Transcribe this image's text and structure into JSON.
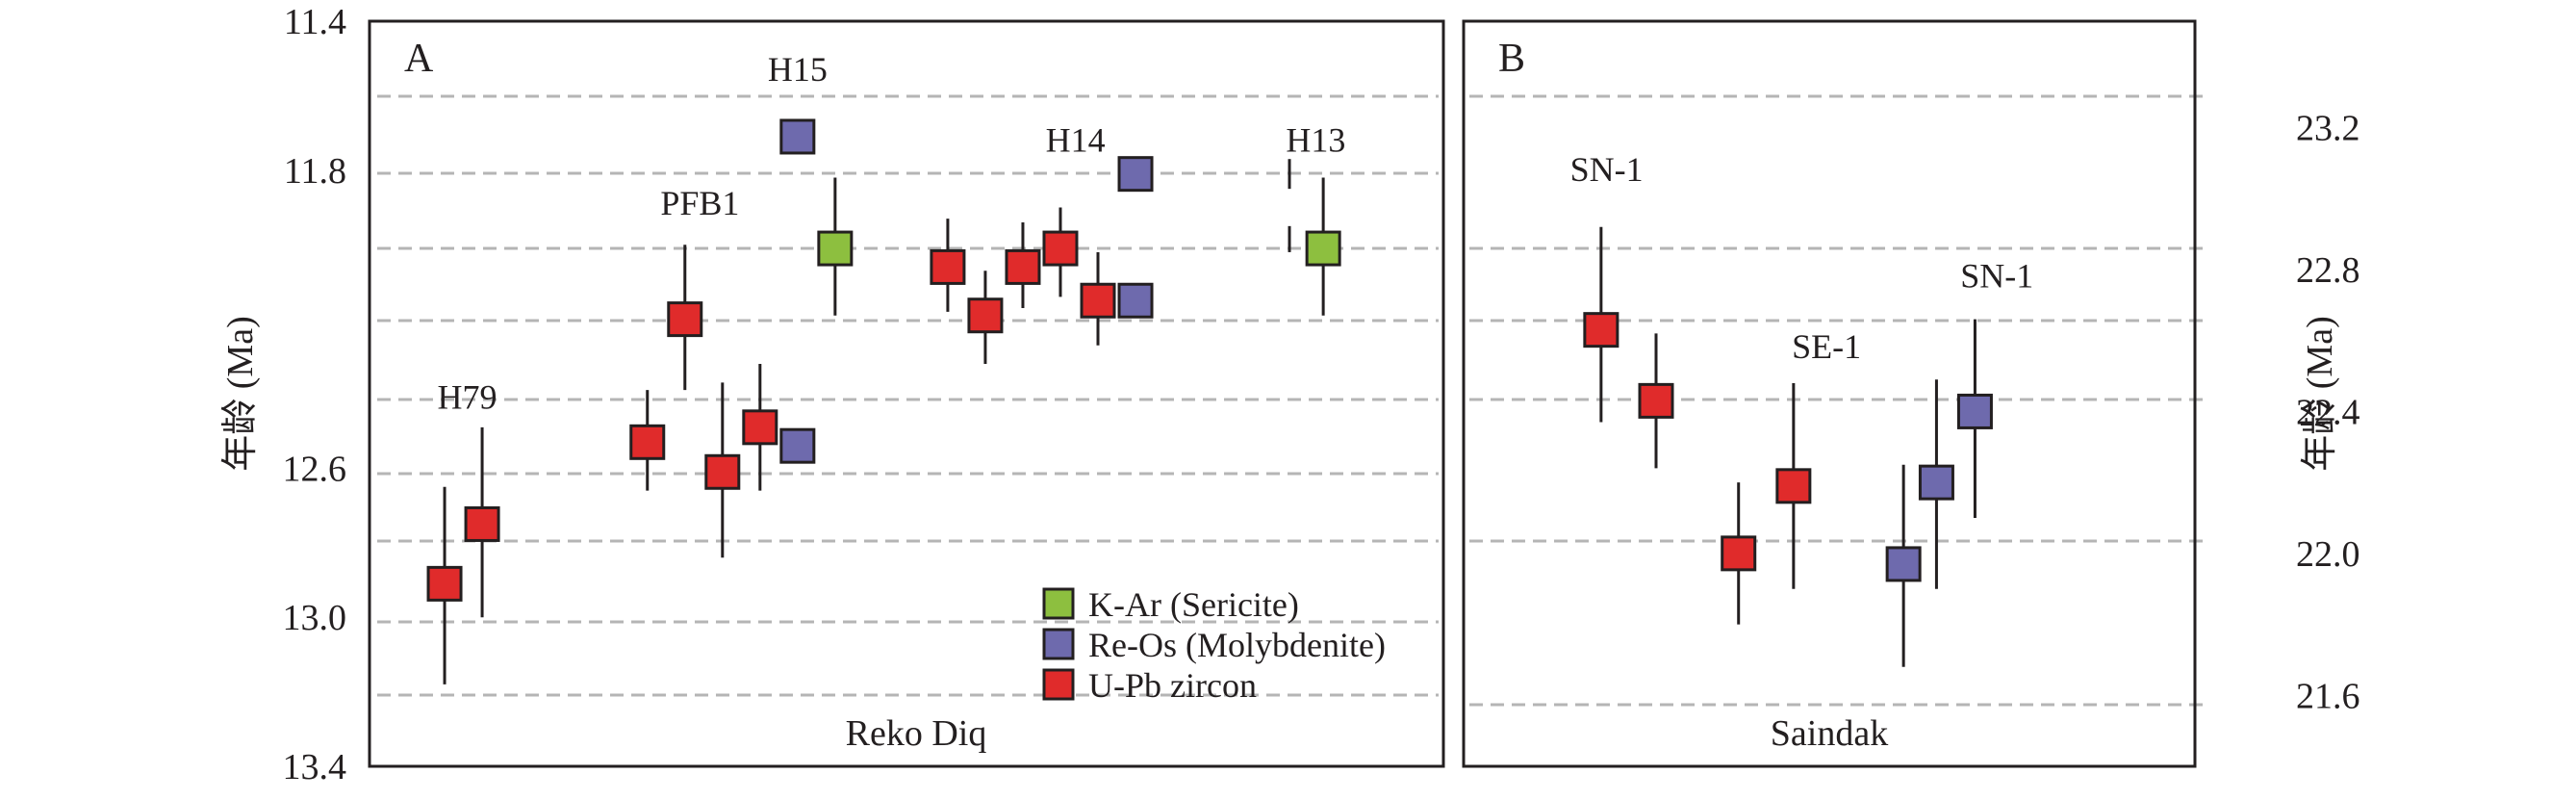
{
  "colors": {
    "K-Ar": "#8dbf3f",
    "Re-Os": "#6e6aad",
    "U-Pb": "#e02b2b",
    "frame": "#231f20",
    "grid": "#b5b5b5"
  },
  "chart_data": [
    {
      "type": "scatter",
      "panel": "A",
      "site": "Reko Diq",
      "ylabel": "年龄 (Ma)",
      "y_axis_side": "left",
      "ylim": [
        11.4,
        13.4
      ],
      "y_inverted": true,
      "yticks": [
        "11.4",
        "11.8",
        "12.6",
        "13.0",
        "13.4"
      ],
      "grid": true,
      "legend_position": "bottom-right",
      "legend": [
        {
          "key": "K-Ar",
          "label": "K-Ar (Sericite)"
        },
        {
          "key": "Re-Os",
          "label": "Re-Os (Molybdenite)"
        },
        {
          "key": "U-Pb",
          "label": "U-Pb zircon"
        }
      ],
      "groups": [
        {
          "label": "H79",
          "x": 1.3,
          "y": 12.44
        },
        {
          "label": "PFB1",
          "x": 4.4,
          "y": 11.92
        },
        {
          "label": "H15",
          "x": 5.7,
          "y": 11.56
        },
        {
          "label": "H14",
          "x": 9.4,
          "y": 11.75
        },
        {
          "label": "H13",
          "x": 12.6,
          "y": 11.75
        }
      ],
      "points": [
        {
          "x": 1.0,
          "y": 12.91,
          "err_low": 12.65,
          "err_high": 13.18,
          "method": "U-Pb"
        },
        {
          "x": 1.5,
          "y": 12.75,
          "err_low": 12.49,
          "err_high": 13.0,
          "method": "U-Pb"
        },
        {
          "x": 3.7,
          "y": 12.53,
          "err_low": 12.39,
          "err_high": 12.66,
          "method": "U-Pb"
        },
        {
          "x": 4.2,
          "y": 12.2,
          "err_low": 12.0,
          "err_high": 12.39,
          "method": "U-Pb"
        },
        {
          "x": 4.7,
          "y": 12.61,
          "err_low": 12.37,
          "err_high": 12.84,
          "method": "U-Pb"
        },
        {
          "x": 5.2,
          "y": 12.49,
          "err_low": 12.32,
          "err_high": 12.66,
          "method": "U-Pb"
        },
        {
          "x": 5.7,
          "y": 11.71,
          "err_low": null,
          "err_high": null,
          "method": "Re-Os"
        },
        {
          "x": 5.7,
          "y": 12.54,
          "err_low": null,
          "err_high": null,
          "method": "Re-Os"
        },
        {
          "x": 6.2,
          "y": 12.01,
          "err_low": 11.82,
          "err_high": 12.19,
          "method": "K-Ar"
        },
        {
          "x": 7.7,
          "y": 12.06,
          "err_low": 11.93,
          "err_high": 12.18,
          "method": "U-Pb"
        },
        {
          "x": 8.2,
          "y": 12.19,
          "err_low": 12.07,
          "err_high": 12.32,
          "method": "U-Pb"
        },
        {
          "x": 8.7,
          "y": 12.06,
          "err_low": 11.94,
          "err_high": 12.17,
          "method": "U-Pb"
        },
        {
          "x": 9.2,
          "y": 12.01,
          "err_low": 11.9,
          "err_high": 12.14,
          "method": "U-Pb"
        },
        {
          "x": 9.7,
          "y": 12.15,
          "err_low": 12.02,
          "err_high": 12.27,
          "method": "U-Pb"
        },
        {
          "x": 10.2,
          "y": 11.81,
          "err_low": null,
          "err_high": null,
          "method": "Re-Os"
        },
        {
          "x": 10.2,
          "y": 12.15,
          "err_low": null,
          "err_high": null,
          "method": "Re-Os"
        },
        {
          "x": 12.7,
          "y": 12.01,
          "err_low": 11.82,
          "err_high": 12.19,
          "method": "K-Ar"
        }
      ]
    },
    {
      "type": "scatter",
      "panel": "B",
      "site": "Saindak",
      "ylabel": "年龄 (Ma)",
      "y_axis_side": "right",
      "ylim": [
        21.4,
        23.5
      ],
      "yticks": [
        "21.6",
        "22.0",
        "22.4",
        "22.8",
        "23.2"
      ],
      "grid": true,
      "groups": [
        {
          "label": "SN-1",
          "x": 2.6,
          "y": 23.05
        },
        {
          "label": "SE-1",
          "x": 6.6,
          "y": 22.55
        },
        {
          "label": "SN-1",
          "x": 9.7,
          "y": 22.75
        }
      ],
      "points": [
        {
          "x": 2.5,
          "y": 22.63,
          "err_low": 22.37,
          "err_high": 22.92,
          "method": "U-Pb"
        },
        {
          "x": 3.5,
          "y": 22.43,
          "err_low": 22.24,
          "err_high": 22.62,
          "method": "U-Pb"
        },
        {
          "x": 5.0,
          "y": 22.0,
          "err_low": 21.8,
          "err_high": 22.2,
          "method": "U-Pb"
        },
        {
          "x": 6.0,
          "y": 22.19,
          "err_low": 21.9,
          "err_high": 22.48,
          "method": "U-Pb"
        },
        {
          "x": 8.0,
          "y": 21.97,
          "err_low": 21.68,
          "err_high": 22.25,
          "method": "Re-Os"
        },
        {
          "x": 8.6,
          "y": 22.2,
          "err_low": 21.9,
          "err_high": 22.49,
          "method": "Re-Os"
        },
        {
          "x": 9.3,
          "y": 22.4,
          "err_low": 22.1,
          "err_high": 22.66,
          "method": "Re-Os"
        }
      ]
    }
  ]
}
